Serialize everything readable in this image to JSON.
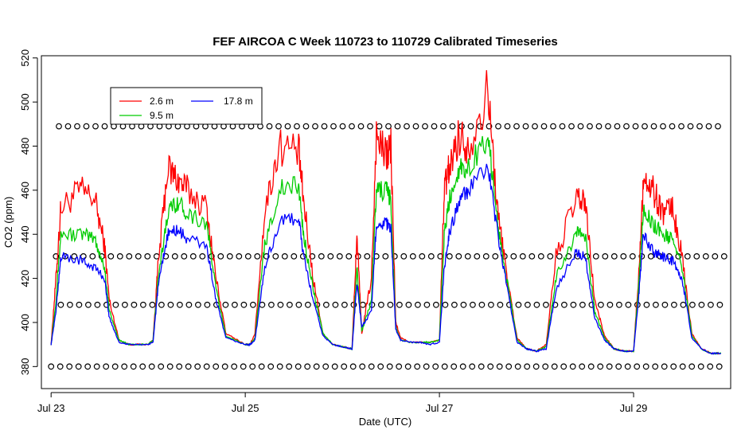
{
  "chart_data": {
    "type": "line",
    "title": "FEF AIRCOA C  Week 110723 to 110729  Calibrated Timeseries",
    "xlabel": "Date (UTC)",
    "ylabel": "CO2 (ppm)",
    "xlim": [
      -0.1,
      7.0
    ],
    "ylim": [
      370,
      521
    ],
    "x_ticks": [
      {
        "value": 0,
        "label": "Jul 23"
      },
      {
        "value": 2,
        "label": "Jul 25"
      },
      {
        "value": 4,
        "label": "Jul 27"
      },
      {
        "value": 6,
        "label": "Jul 29"
      }
    ],
    "y_ticks": [
      {
        "value": 380,
        "label": "380"
      },
      {
        "value": 400,
        "label": "400"
      },
      {
        "value": 420,
        "label": "420"
      },
      {
        "value": 440,
        "label": "440"
      },
      {
        "value": 460,
        "label": "460"
      },
      {
        "value": 480,
        "label": "480"
      },
      {
        "value": 500,
        "label": "500"
      },
      {
        "value": 520,
        "label": "520"
      }
    ],
    "grid": false,
    "legend_position": "top-left",
    "legend": [
      {
        "name": "2.6 m",
        "color": "#ff0000"
      },
      {
        "name": "17.8 m",
        "color": "#0000ff"
      },
      {
        "name": "9.5 m",
        "color": "#00cc00"
      }
    ],
    "series": [
      {
        "name": "2.6 m",
        "color": "#ff0000",
        "x": [
          0.0,
          0.05,
          0.1,
          0.3,
          0.45,
          0.55,
          0.6,
          0.7,
          0.8,
          1.0,
          1.05,
          1.1,
          1.2,
          1.3,
          1.4,
          1.6,
          1.7,
          1.8,
          2.0,
          2.05,
          2.1,
          2.2,
          2.35,
          2.55,
          2.6,
          2.7,
          2.8,
          2.9,
          3.0,
          3.1,
          3.15,
          3.2,
          3.3,
          3.35,
          3.45,
          3.5,
          3.55,
          3.6,
          3.7,
          3.8,
          3.9,
          4.0,
          4.05,
          4.1,
          4.2,
          4.3,
          4.5,
          4.6,
          4.7,
          4.8,
          4.9,
          5.0,
          5.1,
          5.2,
          5.4,
          5.5,
          5.6,
          5.7,
          5.8,
          5.9,
          6.0,
          6.05,
          6.1,
          6.2,
          6.3,
          6.4,
          6.5,
          6.6,
          6.7,
          6.8,
          6.9
        ],
        "values": [
          390,
          420,
          452,
          460,
          456,
          435,
          410,
          392,
          390,
          390,
          392,
          425,
          470,
          465,
          460,
          452,
          420,
          395,
          390,
          390,
          395,
          450,
          480,
          478,
          455,
          420,
          395,
          390,
          389,
          388,
          440,
          395,
          420,
          485,
          475,
          480,
          400,
          393,
          391,
          391,
          391,
          392,
          460,
          470,
          485,
          480,
          505,
          450,
          420,
          393,
          388,
          387,
          390,
          430,
          455,
          455,
          410,
          394,
          388,
          387,
          387,
          420,
          465,
          460,
          450,
          452,
          430,
          395,
          388,
          386,
          386
        ]
      },
      {
        "name": "9.5 m",
        "color": "#00cc00",
        "x": [
          0.0,
          0.05,
          0.1,
          0.3,
          0.45,
          0.55,
          0.6,
          0.7,
          0.8,
          1.0,
          1.05,
          1.1,
          1.2,
          1.3,
          1.4,
          1.6,
          1.7,
          1.8,
          2.0,
          2.05,
          2.1,
          2.2,
          2.35,
          2.55,
          2.6,
          2.7,
          2.8,
          2.9,
          3.0,
          3.1,
          3.15,
          3.2,
          3.3,
          3.35,
          3.45,
          3.5,
          3.55,
          3.6,
          3.7,
          3.8,
          3.9,
          4.0,
          4.05,
          4.1,
          4.2,
          4.3,
          4.5,
          4.6,
          4.7,
          4.8,
          4.9,
          5.0,
          5.1,
          5.2,
          5.4,
          5.5,
          5.6,
          5.7,
          5.8,
          5.9,
          6.0,
          6.05,
          6.1,
          6.2,
          6.3,
          6.4,
          6.5,
          6.6,
          6.7,
          6.8,
          6.9
        ],
        "values": [
          390,
          410,
          440,
          440,
          438,
          425,
          405,
          392,
          390,
          390,
          392,
          418,
          450,
          455,
          450,
          445,
          415,
          394,
          390,
          390,
          393,
          435,
          460,
          462,
          440,
          415,
          395,
          390,
          389,
          388,
          425,
          396,
          410,
          460,
          460,
          455,
          398,
          392,
          391,
          391,
          391,
          392,
          440,
          455,
          470,
          470,
          485,
          445,
          418,
          392,
          388,
          387,
          389,
          420,
          440,
          440,
          405,
          393,
          388,
          387,
          387,
          415,
          450,
          445,
          440,
          438,
          425,
          394,
          388,
          386,
          386
        ]
      },
      {
        "name": "17.8 m",
        "color": "#0000ff",
        "x": [
          0.0,
          0.05,
          0.1,
          0.3,
          0.45,
          0.55,
          0.6,
          0.7,
          0.8,
          1.0,
          1.05,
          1.1,
          1.2,
          1.3,
          1.4,
          1.6,
          1.7,
          1.8,
          2.0,
          2.05,
          2.1,
          2.2,
          2.35,
          2.55,
          2.6,
          2.7,
          2.8,
          2.9,
          3.0,
          3.1,
          3.15,
          3.2,
          3.3,
          3.35,
          3.45,
          3.5,
          3.55,
          3.6,
          3.7,
          3.8,
          3.9,
          4.0,
          4.05,
          4.1,
          4.2,
          4.3,
          4.5,
          4.6,
          4.7,
          4.8,
          4.9,
          5.0,
          5.1,
          5.2,
          5.4,
          5.5,
          5.6,
          5.7,
          5.8,
          5.9,
          6.0,
          6.05,
          6.1,
          6.2,
          6.3,
          6.4,
          6.5,
          6.6,
          6.7,
          6.8,
          6.9
        ],
        "values": [
          390,
          405,
          430,
          428,
          425,
          420,
          402,
          391,
          390,
          390,
          391,
          415,
          440,
          442,
          438,
          435,
          410,
          393,
          390,
          390,
          392,
          425,
          445,
          448,
          430,
          410,
          394,
          390,
          389,
          388,
          418,
          398,
          405,
          445,
          445,
          442,
          397,
          392,
          391,
          391,
          390,
          391,
          425,
          440,
          455,
          460,
          470,
          440,
          415,
          391,
          388,
          387,
          388,
          415,
          432,
          430,
          402,
          392,
          388,
          387,
          387,
          410,
          440,
          432,
          430,
          428,
          420,
          393,
          388,
          386,
          386
        ]
      }
    ],
    "flag_levels": [
      {
        "value": 380,
        "x_start": 0.0,
        "x_end": 6.95
      },
      {
        "value": 408,
        "x_start": 0.1,
        "x_end": 6.95
      },
      {
        "value": 430,
        "x_start": 0.05,
        "x_end": 6.95
      },
      {
        "value": 489,
        "x_start": 0.08,
        "x_end": 6.95
      }
    ]
  }
}
